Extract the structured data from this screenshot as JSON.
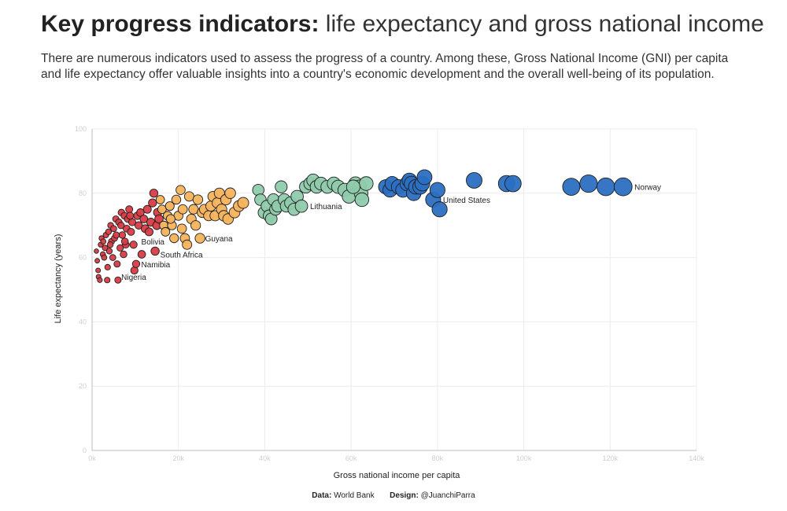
{
  "title": {
    "bold": "Key progress indicators:",
    "light": "life expectancy and gross national income"
  },
  "subtitle": "There are numerous indicators used to assess the progress of a country. Among these, Gross National Income (GNI) per capita and life expectancy offer valuable insights into a country's economic development and the overall well-being of its population.",
  "footer": {
    "data_label": "Data:",
    "data_value": "World Bank",
    "design_label": "Design:",
    "design_value": "@JuanchiParra"
  },
  "colors": {
    "red": "#d93b45",
    "orange": "#f5b35c",
    "green": "#8fcbac",
    "blue": "#2b6fc2",
    "grid": "#ececec",
    "tick": "#cfcfcf"
  },
  "chart_data": {
    "type": "scatter",
    "xlabel": "Gross national income per capita",
    "ylabel": "Life expectancy (years)",
    "xlim": [
      0,
      140000
    ],
    "ylim": [
      0,
      100
    ],
    "xticks": [
      "0k",
      "20k",
      "40k",
      "60k",
      "80k",
      "100k",
      "120k",
      "140k"
    ],
    "yticks": [
      "0",
      "20",
      "40",
      "60",
      "80",
      "100"
    ],
    "grid": true,
    "series": [
      {
        "group": "red",
        "points": [
          [
            1000,
            62
          ],
          [
            1200,
            59
          ],
          [
            1400,
            56
          ],
          [
            1500,
            54
          ],
          [
            1800,
            53
          ],
          [
            2000,
            64
          ],
          [
            2200,
            66
          ],
          [
            2500,
            61
          ],
          [
            2800,
            60
          ],
          [
            3000,
            63
          ],
          [
            3200,
            67
          ],
          [
            3500,
            53
          ],
          [
            3800,
            68
          ],
          [
            4000,
            62
          ],
          [
            4300,
            70
          ],
          [
            4500,
            65
          ],
          [
            4800,
            60
          ],
          [
            5000,
            69
          ],
          [
            5200,
            66
          ],
          [
            5500,
            72
          ],
          [
            5800,
            58
          ],
          [
            6000,
            53
          ],
          [
            6200,
            71
          ],
          [
            6500,
            63
          ],
          [
            6800,
            74
          ],
          [
            7000,
            67
          ],
          [
            7300,
            61
          ],
          [
            7500,
            73
          ],
          [
            7800,
            64
          ],
          [
            8000,
            69
          ],
          [
            8300,
            72
          ],
          [
            8600,
            75
          ],
          [
            9000,
            68
          ],
          [
            9300,
            71
          ],
          [
            9600,
            64
          ],
          [
            9800,
            56
          ],
          [
            10200,
            58
          ],
          [
            10500,
            73
          ],
          [
            10800,
            70
          ],
          [
            11200,
            74
          ],
          [
            11500,
            61
          ],
          [
            12000,
            72
          ],
          [
            12300,
            69
          ],
          [
            12800,
            75
          ],
          [
            13200,
            68
          ],
          [
            13600,
            71
          ],
          [
            14000,
            77
          ],
          [
            14300,
            80
          ],
          [
            14600,
            62
          ],
          [
            15000,
            70
          ],
          [
            15200,
            74
          ],
          [
            15500,
            72
          ],
          [
            4200,
            64
          ],
          [
            5600,
            67
          ],
          [
            6700,
            70
          ],
          [
            7600,
            65
          ],
          [
            8800,
            73
          ],
          [
            3600,
            57
          ],
          [
            2600,
            65
          ]
        ]
      },
      {
        "group": "orange",
        "points": [
          [
            15800,
            78
          ],
          [
            16200,
            75
          ],
          [
            16600,
            70
          ],
          [
            17000,
            68
          ],
          [
            17500,
            73
          ],
          [
            18000,
            76
          ],
          [
            18500,
            70
          ],
          [
            19000,
            66
          ],
          [
            19500,
            78
          ],
          [
            20000,
            73
          ],
          [
            20500,
            81
          ],
          [
            21000,
            75
          ],
          [
            21500,
            66
          ],
          [
            22000,
            64
          ],
          [
            22500,
            79
          ],
          [
            23000,
            72
          ],
          [
            23500,
            75
          ],
          [
            24000,
            70
          ],
          [
            24500,
            78
          ],
          [
            25000,
            66
          ],
          [
            25500,
            74
          ],
          [
            26000,
            75
          ],
          [
            27000,
            73
          ],
          [
            27500,
            76
          ],
          [
            28000,
            79
          ],
          [
            28500,
            73
          ],
          [
            29000,
            77
          ],
          [
            29500,
            80
          ],
          [
            30000,
            75
          ],
          [
            30500,
            73
          ],
          [
            31000,
            78
          ],
          [
            31500,
            72
          ],
          [
            32000,
            80
          ],
          [
            33000,
            74
          ],
          [
            34000,
            76
          ],
          [
            35000,
            77
          ],
          [
            18200,
            72
          ],
          [
            20800,
            69
          ]
        ]
      },
      {
        "group": "green",
        "points": [
          [
            38500,
            81
          ],
          [
            39000,
            78
          ],
          [
            39800,
            74
          ],
          [
            40500,
            76
          ],
          [
            41000,
            73
          ],
          [
            41500,
            72
          ],
          [
            42000,
            78
          ],
          [
            42500,
            75
          ],
          [
            43000,
            76
          ],
          [
            43800,
            82
          ],
          [
            44500,
            78
          ],
          [
            45000,
            76
          ],
          [
            46000,
            77
          ],
          [
            46800,
            75
          ],
          [
            47500,
            79
          ],
          [
            48500,
            76
          ],
          [
            49500,
            82
          ],
          [
            50500,
            83
          ],
          [
            51200,
            84
          ],
          [
            52000,
            82
          ],
          [
            53000,
            83
          ],
          [
            54500,
            82
          ],
          [
            56000,
            83
          ],
          [
            57000,
            82
          ],
          [
            58500,
            81
          ],
          [
            59500,
            79
          ],
          [
            61000,
            83
          ],
          [
            62000,
            82
          ],
          [
            62300,
            80
          ],
          [
            62500,
            78
          ],
          [
            63500,
            83
          ],
          [
            60500,
            82
          ]
        ]
      },
      {
        "group": "blue",
        "points": [
          [
            68000,
            82
          ],
          [
            69000,
            81
          ],
          [
            69500,
            83
          ],
          [
            71000,
            82
          ],
          [
            72000,
            81
          ],
          [
            73000,
            83
          ],
          [
            73500,
            84
          ],
          [
            74000,
            83
          ],
          [
            74500,
            80
          ],
          [
            75000,
            82
          ],
          [
            76000,
            82
          ],
          [
            76500,
            83
          ],
          [
            77000,
            85
          ],
          [
            79000,
            78
          ],
          [
            80000,
            81
          ],
          [
            80500,
            75
          ],
          [
            88500,
            84
          ],
          [
            96000,
            83
          ],
          [
            97500,
            83
          ],
          [
            111000,
            82
          ],
          [
            115000,
            83
          ],
          [
            119000,
            82
          ],
          [
            123000,
            82
          ]
        ]
      }
    ],
    "annotations": [
      {
        "label": "Norway",
        "x": 123000,
        "y": 82
      },
      {
        "label": "United States",
        "x": 79000,
        "y": 78
      },
      {
        "label": "Lithuania",
        "x": 48500,
        "y": 76
      },
      {
        "label": "Guyana",
        "x": 24500,
        "y": 66
      },
      {
        "label": "Bolivia",
        "x": 10000,
        "y": 65
      },
      {
        "label": "South Africa",
        "x": 14300,
        "y": 61
      },
      {
        "label": "Namibia",
        "x": 10000,
        "y": 58
      },
      {
        "label": "Nigeria",
        "x": 5500,
        "y": 54
      }
    ]
  }
}
